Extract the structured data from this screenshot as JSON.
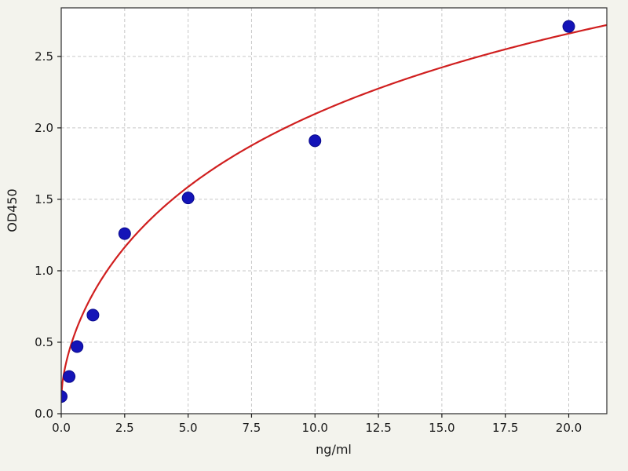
{
  "figure": {
    "background_color": "#f3f3ed",
    "plot_background_color": "#ffffff",
    "grid_color": "#c7c7c7",
    "spine_color": "#2b2b2b",
    "tick_color": "#1a1a1a"
  },
  "chart_data": {
    "type": "scatter",
    "title": "",
    "xlabel": "ng/ml",
    "ylabel": "OD450",
    "xlim": [
      0,
      21.5
    ],
    "ylim": [
      0,
      2.84
    ],
    "grid": true,
    "grid_style": "dashed",
    "legend": "none",
    "xticks": {
      "values": [
        0,
        2.5,
        5,
        7.5,
        10,
        12.5,
        15,
        17.5,
        20
      ],
      "labels": [
        "0.0",
        "2.5",
        "5.0",
        "7.5",
        "10.0",
        "12.5",
        "15.0",
        "17.5",
        "20.0"
      ]
    },
    "yticks": {
      "values": [
        0,
        0.5,
        1.0,
        1.5,
        2.0,
        2.5
      ],
      "labels": [
        "0.0",
        "0.5",
        "1.0",
        "1.5",
        "2.0",
        "2.5"
      ]
    },
    "series": [
      {
        "name": "standard-points",
        "kind": "scatter",
        "color": "#1414b8",
        "edge_color": "#0a0a8c",
        "marker_radius": 7.5,
        "x": [
          0,
          0.313,
          0.625,
          1.25,
          2.5,
          5,
          10,
          20
        ],
        "y": [
          0.12,
          0.26,
          0.47,
          0.69,
          1.26,
          1.51,
          1.91,
          2.71
        ]
      },
      {
        "name": "fitted-curve",
        "kind": "line",
        "color": "#d01f1f",
        "line_width": 2.2,
        "fit": "4pl",
        "params": {
          "a": 0.12,
          "b": 0.65,
          "c": 20,
          "d": 5.2
        }
      }
    ]
  }
}
